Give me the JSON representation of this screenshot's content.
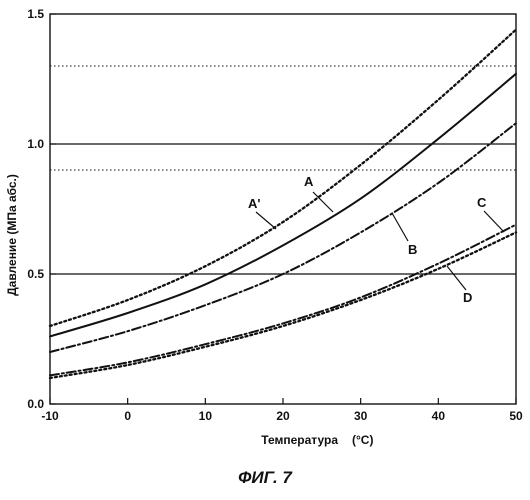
{
  "chart_data": {
    "type": "line",
    "title": "",
    "xlabel": "Температура",
    "xlabel_unit": "(°C)",
    "ylabel": "Давление (МПа абс.)",
    "xlim": [
      -10,
      50
    ],
    "ylim": [
      0.0,
      1.5
    ],
    "x_ticks": [
      -10,
      0,
      10,
      20,
      30,
      40,
      50
    ],
    "y_ticks": [
      "0.0",
      "0.5",
      "1.0",
      "1.5"
    ],
    "grid": "horizontal lines at 0.5 and 1.0; dotted reference lines at 0.9 and 1.3",
    "reference_lines": [
      {
        "y": 0.5,
        "style": "solid"
      },
      {
        "y": 1.0,
        "style": "solid"
      },
      {
        "y": 0.9,
        "style": "dotted"
      },
      {
        "y": 1.3,
        "style": "dotted"
      }
    ],
    "x": [
      -10,
      0,
      10,
      20,
      30,
      40,
      50
    ],
    "series": [
      {
        "name": "A'",
        "style": "dotted",
        "values": [
          0.3,
          0.4,
          0.53,
          0.7,
          0.92,
          1.17,
          1.44
        ]
      },
      {
        "name": "A",
        "style": "solid",
        "values": [
          0.26,
          0.35,
          0.46,
          0.61,
          0.79,
          1.02,
          1.27
        ]
      },
      {
        "name": "B",
        "style": "dash-dot",
        "values": [
          0.2,
          0.28,
          0.38,
          0.5,
          0.66,
          0.85,
          1.08
        ]
      },
      {
        "name": "C",
        "style": "dash-dot",
        "values": [
          0.11,
          0.16,
          0.23,
          0.31,
          0.41,
          0.54,
          0.69
        ]
      },
      {
        "name": "D",
        "style": "dotted",
        "values": [
          0.1,
          0.15,
          0.22,
          0.3,
          0.4,
          0.52,
          0.66
        ]
      }
    ]
  },
  "caption": "ФИГ. 7"
}
